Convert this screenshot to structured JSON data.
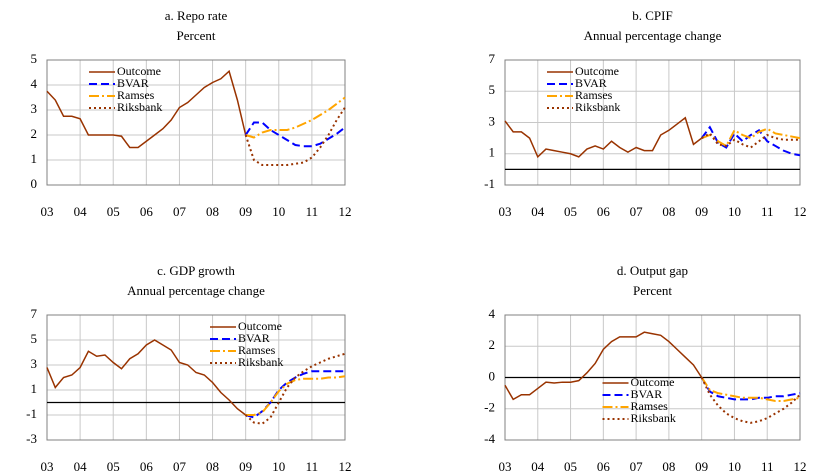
{
  "chart_data": [
    {
      "type": "line",
      "title": "a. Repo rate",
      "subtitle": "Percent",
      "x": [
        2003,
        2003.25,
        2003.5,
        2003.75,
        2004,
        2004.25,
        2004.5,
        2004.75,
        2005,
        2005.25,
        2005.5,
        2005.75,
        2006,
        2006.25,
        2006.5,
        2006.75,
        2007,
        2007.25,
        2007.5,
        2007.75,
        2008,
        2008.25,
        2008.5,
        2008.75,
        2009,
        2009.25,
        2009.5,
        2009.75,
        2010,
        2010.25,
        2010.5,
        2010.75,
        2011,
        2011.25,
        2011.5,
        2011.75,
        2012
      ],
      "xlim": [
        2003,
        2012
      ],
      "xticks": [
        {
          "value": 2003,
          "label": "03"
        },
        {
          "value": 2004,
          "label": "04"
        },
        {
          "value": 2005,
          "label": "05"
        },
        {
          "value": 2006,
          "label": "06"
        },
        {
          "value": 2007,
          "label": "07"
        },
        {
          "value": 2008,
          "label": "08"
        },
        {
          "value": 2009,
          "label": "09"
        },
        {
          "value": 2010,
          "label": "10"
        },
        {
          "value": 2011,
          "label": "11"
        },
        {
          "value": 2012,
          "label": "12"
        }
      ],
      "ylim": [
        0,
        5
      ],
      "yticks": [
        0,
        1,
        2,
        3,
        4,
        5
      ],
      "grid": true,
      "zero_line": false,
      "legend": "upper left",
      "series": [
        {
          "name": "Outcome",
          "color": "#993300",
          "style": "solid",
          "values": [
            3.75,
            3.4,
            2.75,
            2.75,
            2.65,
            2.0,
            2.0,
            2.0,
            2.0,
            1.95,
            1.5,
            1.5,
            1.75,
            2.0,
            2.25,
            2.6,
            3.1,
            3.3,
            3.6,
            3.9,
            4.1,
            4.25,
            4.55,
            3.4,
            2.0,
            null,
            null,
            null,
            null,
            null,
            null,
            null,
            null,
            null,
            null,
            null,
            null
          ]
        },
        {
          "name": "BVAR",
          "color": "#0000ff",
          "style": "dashed",
          "values": [
            null,
            null,
            null,
            null,
            null,
            null,
            null,
            null,
            null,
            null,
            null,
            null,
            null,
            null,
            null,
            null,
            null,
            null,
            null,
            null,
            null,
            null,
            null,
            null,
            2.0,
            2.5,
            2.5,
            2.2,
            2.0,
            1.8,
            1.6,
            1.55,
            1.55,
            1.65,
            1.85,
            2.05,
            2.3
          ]
        },
        {
          "name": "Ramses",
          "color": "#ffa500",
          "style": "dashdot",
          "values": [
            null,
            null,
            null,
            null,
            null,
            null,
            null,
            null,
            null,
            null,
            null,
            null,
            null,
            null,
            null,
            null,
            null,
            null,
            null,
            null,
            null,
            null,
            null,
            null,
            2.0,
            1.9,
            2.1,
            2.2,
            2.2,
            2.2,
            2.3,
            2.45,
            2.6,
            2.8,
            3.0,
            3.25,
            3.5
          ]
        },
        {
          "name": "Riksbank",
          "color": "#993300",
          "style": "dotted",
          "values": [
            null,
            null,
            null,
            null,
            null,
            null,
            null,
            null,
            null,
            null,
            null,
            null,
            null,
            null,
            null,
            null,
            null,
            null,
            null,
            null,
            null,
            null,
            null,
            null,
            2.0,
            1.0,
            0.8,
            0.8,
            0.8,
            0.8,
            0.85,
            0.9,
            1.1,
            1.5,
            2.0,
            2.6,
            3.1
          ]
        }
      ]
    },
    {
      "type": "line",
      "title": "b. CPIF",
      "subtitle": "Annual percentage change",
      "x": [
        2003,
        2003.25,
        2003.5,
        2003.75,
        2004,
        2004.25,
        2004.5,
        2004.75,
        2005,
        2005.25,
        2005.5,
        2005.75,
        2006,
        2006.25,
        2006.5,
        2006.75,
        2007,
        2007.25,
        2007.5,
        2007.75,
        2008,
        2008.25,
        2008.5,
        2008.75,
        2009,
        2009.25,
        2009.5,
        2009.75,
        2010,
        2010.25,
        2010.5,
        2010.75,
        2011,
        2011.25,
        2011.5,
        2011.75,
        2012
      ],
      "xlim": [
        2003,
        2012
      ],
      "xticks": [
        {
          "value": 2003,
          "label": "03"
        },
        {
          "value": 2004,
          "label": "04"
        },
        {
          "value": 2005,
          "label": "05"
        },
        {
          "value": 2006,
          "label": "06"
        },
        {
          "value": 2007,
          "label": "07"
        },
        {
          "value": 2008,
          "label": "08"
        },
        {
          "value": 2009,
          "label": "09"
        },
        {
          "value": 2010,
          "label": "10"
        },
        {
          "value": 2011,
          "label": "11"
        },
        {
          "value": 2012,
          "label": "12"
        }
      ],
      "ylim": [
        -1,
        7
      ],
      "yticks": [
        -1,
        1,
        3,
        5,
        7
      ],
      "grid": true,
      "zero_line": true,
      "legend": "upper left",
      "series": [
        {
          "name": "Outcome",
          "color": "#993300",
          "style": "solid",
          "values": [
            3.1,
            2.4,
            2.4,
            2.0,
            0.8,
            1.3,
            1.2,
            1.1,
            1.0,
            0.8,
            1.3,
            1.5,
            1.3,
            1.8,
            1.4,
            1.1,
            1.4,
            1.2,
            1.2,
            2.2,
            2.5,
            2.9,
            3.3,
            1.6,
            2.0,
            null,
            null,
            null,
            null,
            null,
            null,
            null,
            null,
            null,
            null,
            null,
            null
          ]
        },
        {
          "name": "BVAR",
          "color": "#0000ff",
          "style": "dashed",
          "values": [
            null,
            null,
            null,
            null,
            null,
            null,
            null,
            null,
            null,
            null,
            null,
            null,
            null,
            null,
            null,
            null,
            null,
            null,
            null,
            null,
            null,
            null,
            null,
            null,
            2.0,
            2.7,
            1.7,
            1.4,
            2.3,
            1.8,
            2.2,
            2.5,
            1.8,
            1.5,
            1.2,
            1.0,
            0.9
          ]
        },
        {
          "name": "Ramses",
          "color": "#ffa500",
          "style": "dashdot",
          "values": [
            null,
            null,
            null,
            null,
            null,
            null,
            null,
            null,
            null,
            null,
            null,
            null,
            null,
            null,
            null,
            null,
            null,
            null,
            null,
            null,
            null,
            null,
            null,
            null,
            2.0,
            2.2,
            1.8,
            1.5,
            2.5,
            2.2,
            2.0,
            2.4,
            2.6,
            2.3,
            2.2,
            2.1,
            2.0
          ]
        },
        {
          "name": "Riksbank",
          "color": "#993300",
          "style": "dotted",
          "values": [
            null,
            null,
            null,
            null,
            null,
            null,
            null,
            null,
            null,
            null,
            null,
            null,
            null,
            null,
            null,
            null,
            null,
            null,
            null,
            null,
            null,
            null,
            null,
            null,
            2.0,
            2.3,
            1.6,
            1.5,
            1.9,
            1.6,
            1.4,
            1.8,
            2.2,
            2.0,
            1.9,
            1.9,
            1.9
          ]
        }
      ]
    },
    {
      "type": "line",
      "title": "c. GDP growth",
      "subtitle": "Annual percentage change",
      "x": [
        2003,
        2003.25,
        2003.5,
        2003.75,
        2004,
        2004.25,
        2004.5,
        2004.75,
        2005,
        2005.25,
        2005.5,
        2005.75,
        2006,
        2006.25,
        2006.5,
        2006.75,
        2007,
        2007.25,
        2007.5,
        2007.75,
        2008,
        2008.25,
        2008.5,
        2008.75,
        2009,
        2009.25,
        2009.5,
        2009.75,
        2010,
        2010.25,
        2010.5,
        2010.75,
        2011,
        2011.25,
        2011.5,
        2011.75,
        2012
      ],
      "xlim": [
        2003,
        2012
      ],
      "xticks": [
        {
          "value": 2003,
          "label": "03"
        },
        {
          "value": 2004,
          "label": "04"
        },
        {
          "value": 2005,
          "label": "05"
        },
        {
          "value": 2006,
          "label": "06"
        },
        {
          "value": 2007,
          "label": "07"
        },
        {
          "value": 2008,
          "label": "08"
        },
        {
          "value": 2009,
          "label": "09"
        },
        {
          "value": 2010,
          "label": "10"
        },
        {
          "value": 2011,
          "label": "11"
        },
        {
          "value": 2012,
          "label": "12"
        }
      ],
      "ylim": [
        -3,
        7
      ],
      "yticks": [
        -3,
        -1,
        1,
        3,
        5,
        7
      ],
      "grid": true,
      "zero_line": true,
      "legend": "upper right",
      "series": [
        {
          "name": "Outcome",
          "color": "#993300",
          "style": "solid",
          "values": [
            2.8,
            1.2,
            2.0,
            2.2,
            2.8,
            4.1,
            3.7,
            3.8,
            3.2,
            2.7,
            3.5,
            3.9,
            4.6,
            5.0,
            4.6,
            4.2,
            3.2,
            3.0,
            2.4,
            2.2,
            1.6,
            0.8,
            0.2,
            -0.5,
            -1.0,
            null,
            null,
            null,
            null,
            null,
            null,
            null,
            null,
            null,
            null,
            null,
            null
          ]
        },
        {
          "name": "BVAR",
          "color": "#0000ff",
          "style": "dashed",
          "values": [
            null,
            null,
            null,
            null,
            null,
            null,
            null,
            null,
            null,
            null,
            null,
            null,
            null,
            null,
            null,
            null,
            null,
            null,
            null,
            null,
            null,
            null,
            null,
            null,
            -1.0,
            -1.2,
            -0.7,
            0.0,
            1.0,
            1.6,
            2.0,
            2.3,
            2.5,
            2.5,
            2.5,
            2.5,
            2.5
          ]
        },
        {
          "name": "Ramses",
          "color": "#ffa500",
          "style": "dashdot",
          "values": [
            null,
            null,
            null,
            null,
            null,
            null,
            null,
            null,
            null,
            null,
            null,
            null,
            null,
            null,
            null,
            null,
            null,
            null,
            null,
            null,
            null,
            null,
            null,
            null,
            -1.0,
            -1.0,
            -0.8,
            0.0,
            0.9,
            1.5,
            1.8,
            1.9,
            1.9,
            1.9,
            2.0,
            2.0,
            2.1
          ]
        },
        {
          "name": "Riksbank",
          "color": "#993300",
          "style": "dotted",
          "values": [
            null,
            null,
            null,
            null,
            null,
            null,
            null,
            null,
            null,
            null,
            null,
            null,
            null,
            null,
            null,
            null,
            null,
            null,
            null,
            null,
            null,
            null,
            null,
            null,
            -1.0,
            -1.6,
            -1.7,
            -1.2,
            0.0,
            1.2,
            2.0,
            2.5,
            2.9,
            3.2,
            3.5,
            3.7,
            3.9
          ]
        }
      ]
    },
    {
      "type": "line",
      "title": "d. Output gap",
      "subtitle": "Percent",
      "x": [
        2003,
        2003.25,
        2003.5,
        2003.75,
        2004,
        2004.25,
        2004.5,
        2004.75,
        2005,
        2005.25,
        2005.5,
        2005.75,
        2006,
        2006.25,
        2006.5,
        2006.75,
        2007,
        2007.25,
        2007.5,
        2007.75,
        2008,
        2008.25,
        2008.5,
        2008.75,
        2009,
        2009.25,
        2009.5,
        2009.75,
        2010,
        2010.25,
        2010.5,
        2010.75,
        2011,
        2011.25,
        2011.5,
        2011.75,
        2012
      ],
      "xlim": [
        2003,
        2012
      ],
      "xticks": [
        {
          "value": 2003,
          "label": "03"
        },
        {
          "value": 2004,
          "label": "04"
        },
        {
          "value": 2005,
          "label": "05"
        },
        {
          "value": 2006,
          "label": "06"
        },
        {
          "value": 2007,
          "label": "07"
        },
        {
          "value": 2008,
          "label": "08"
        },
        {
          "value": 2009,
          "label": "09"
        },
        {
          "value": 2010,
          "label": "10"
        },
        {
          "value": 2011,
          "label": "11"
        },
        {
          "value": 2012,
          "label": "12"
        }
      ],
      "ylim": [
        -4,
        4
      ],
      "yticks": [
        -4,
        -2,
        0,
        2,
        4
      ],
      "grid": true,
      "zero_line": true,
      "legend": "lower center",
      "series": [
        {
          "name": "Outcome",
          "color": "#993300",
          "style": "solid",
          "values": [
            -0.5,
            -1.4,
            -1.1,
            -1.1,
            -0.7,
            -0.3,
            -0.35,
            -0.3,
            -0.3,
            -0.2,
            0.3,
            0.9,
            1.8,
            2.3,
            2.6,
            2.6,
            2.6,
            2.9,
            2.8,
            2.7,
            2.3,
            1.8,
            1.3,
            0.8,
            0.0,
            null,
            null,
            null,
            null,
            null,
            null,
            null,
            null,
            null,
            null,
            null,
            null
          ]
        },
        {
          "name": "BVAR",
          "color": "#0000ff",
          "style": "dashed",
          "values": [
            null,
            null,
            null,
            null,
            null,
            null,
            null,
            null,
            null,
            null,
            null,
            null,
            null,
            null,
            null,
            null,
            null,
            null,
            null,
            null,
            null,
            null,
            null,
            null,
            0.0,
            -0.9,
            -1.2,
            -1.3,
            -1.4,
            -1.4,
            -1.4,
            -1.3,
            -1.3,
            -1.2,
            -1.2,
            -1.1,
            -1.0
          ]
        },
        {
          "name": "Ramses",
          "color": "#ffa500",
          "style": "dashdot",
          "values": [
            null,
            null,
            null,
            null,
            null,
            null,
            null,
            null,
            null,
            null,
            null,
            null,
            null,
            null,
            null,
            null,
            null,
            null,
            null,
            null,
            null,
            null,
            null,
            null,
            0.0,
            -0.8,
            -1.0,
            -1.1,
            -1.2,
            -1.3,
            -1.3,
            -1.3,
            -1.4,
            -1.5,
            -1.5,
            -1.4,
            -1.3
          ]
        },
        {
          "name": "Riksbank",
          "color": "#993300",
          "style": "dotted",
          "values": [
            null,
            null,
            null,
            null,
            null,
            null,
            null,
            null,
            null,
            null,
            null,
            null,
            null,
            null,
            null,
            null,
            null,
            null,
            null,
            null,
            null,
            null,
            null,
            null,
            0.0,
            -1.1,
            -1.8,
            -2.3,
            -2.6,
            -2.8,
            -2.9,
            -2.8,
            -2.6,
            -2.3,
            -2.0,
            -1.6,
            -1.1
          ]
        }
      ]
    }
  ]
}
